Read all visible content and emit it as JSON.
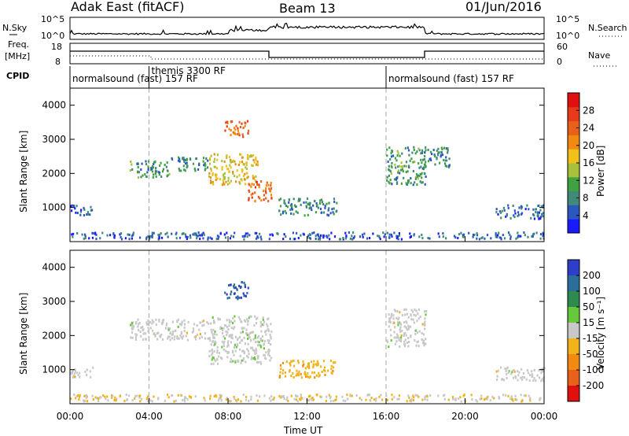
{
  "header": {
    "station": "Adak East (fitACF)",
    "beam": "Beam 13",
    "date": "01/Jun/2016"
  },
  "strip_labels": {
    "nsky": "N.Sky",
    "nsearch": "N.Search",
    "freq_line1": "Freq.",
    "freq_line2": "[MHz]",
    "nave": "Nave",
    "cpid": "CPID",
    "nsky_ticks": [
      "10^5",
      "10^0"
    ],
    "nsearch_ticks": [
      "10^5",
      "10^0"
    ],
    "freq_ticks": [
      "18",
      "8"
    ],
    "nave_ticks": [
      "60",
      "0"
    ]
  },
  "cpid_segments": [
    {
      "label": "normalsound (fast) 157 RF",
      "start_hour": 0
    },
    {
      "label": "themis 3300 RF",
      "start_hour": 4
    },
    {
      "label": "normalsound (fast) 157 RF",
      "start_hour": 16
    }
  ],
  "chart_data": [
    {
      "type": "heatmap",
      "name": "power",
      "xlabel": "",
      "ylabel": "Slant Range [km]",
      "xlim": [
        0,
        24
      ],
      "ylim": [
        0,
        4500
      ],
      "y_ticks": [
        1000,
        2000,
        3000,
        4000
      ],
      "colorbar_label": "Power [dB]",
      "colorbar_ticks": [
        "4",
        "8",
        "12",
        "16",
        "20",
        "24",
        "28"
      ],
      "colorbar_colors": [
        "#1a1aff",
        "#2b58c0",
        "#3f8a78",
        "#3fa23f",
        "#a8c03a",
        "#f2c01a",
        "#f08a10",
        "#e8601a",
        "#e63a1a",
        "#e01010"
      ],
      "features": [
        {
          "x": [
            0.0,
            1.2
          ],
          "y": [
            800,
            1100
          ],
          "value": 6
        },
        {
          "x": [
            3.0,
            5.0
          ],
          "y": [
            1900,
            2400
          ],
          "value": 9
        },
        {
          "x": [
            5.0,
            7.0
          ],
          "y": [
            2100,
            2500
          ],
          "value": 8
        },
        {
          "x": [
            7.0,
            9.5
          ],
          "y": [
            1700,
            2600
          ],
          "value": 16
        },
        {
          "x": [
            9.0,
            10.2
          ],
          "y": [
            1200,
            1800
          ],
          "value": 22
        },
        {
          "x": [
            10.5,
            13.5
          ],
          "y": [
            800,
            1300
          ],
          "value": 7
        },
        {
          "x": [
            7.8,
            9.0
          ],
          "y": [
            3100,
            3600
          ],
          "value": 22
        },
        {
          "x": [
            16.0,
            18.0
          ],
          "y": [
            1700,
            2800
          ],
          "value": 9
        },
        {
          "x": [
            18.0,
            19.2
          ],
          "y": [
            2200,
            2800
          ],
          "value": 7
        },
        {
          "x": [
            21.5,
            24.0
          ],
          "y": [
            700,
            1100
          ],
          "value": 5
        },
        {
          "x": [
            0.0,
            24.0
          ],
          "y": [
            100,
            300
          ],
          "value": 5
        }
      ]
    },
    {
      "type": "heatmap",
      "name": "velocity",
      "xlabel": "Time UT",
      "ylabel": "Slant Range [km]",
      "xlim": [
        0,
        24
      ],
      "ylim": [
        0,
        4500
      ],
      "x_ticks": [
        "00:00",
        "04:00",
        "08:00",
        "12:00",
        "16:00",
        "20:00",
        "00:00"
      ],
      "y_ticks": [
        1000,
        2000,
        3000,
        4000
      ],
      "colorbar_label": "Velocity [m s⁻¹]",
      "colorbar_ticks": [
        "200",
        "100",
        "50",
        "15",
        "-15",
        "-50",
        "-100",
        "-200"
      ],
      "colorbar_colors": [
        "#2d3ec8",
        "#2c6e9a",
        "#2e8a4e",
        "#66c83a",
        "#c8c8c8",
        "#f2b21a",
        "#f08a10",
        "#e8601a",
        "#e01010"
      ],
      "features": [
        {
          "x": [
            0.0,
            1.2
          ],
          "y": [
            800,
            1100
          ],
          "value": -5
        },
        {
          "x": [
            3.0,
            7.0
          ],
          "y": [
            1900,
            2500
          ],
          "value": 0
        },
        {
          "x": [
            7.0,
            10.2
          ],
          "y": [
            1200,
            2600
          ],
          "value": 5
        },
        {
          "x": [
            10.5,
            13.5
          ],
          "y": [
            800,
            1300
          ],
          "value": -60
        },
        {
          "x": [
            7.8,
            9.0
          ],
          "y": [
            3100,
            3600
          ],
          "value": 200
        },
        {
          "x": [
            16.0,
            18.0
          ],
          "y": [
            1700,
            2800
          ],
          "value": 0
        },
        {
          "x": [
            21.5,
            24.0
          ],
          "y": [
            700,
            1100
          ],
          "value": 0
        },
        {
          "x": [
            0.0,
            24.0
          ],
          "y": [
            100,
            300
          ],
          "value": -20
        }
      ]
    }
  ]
}
